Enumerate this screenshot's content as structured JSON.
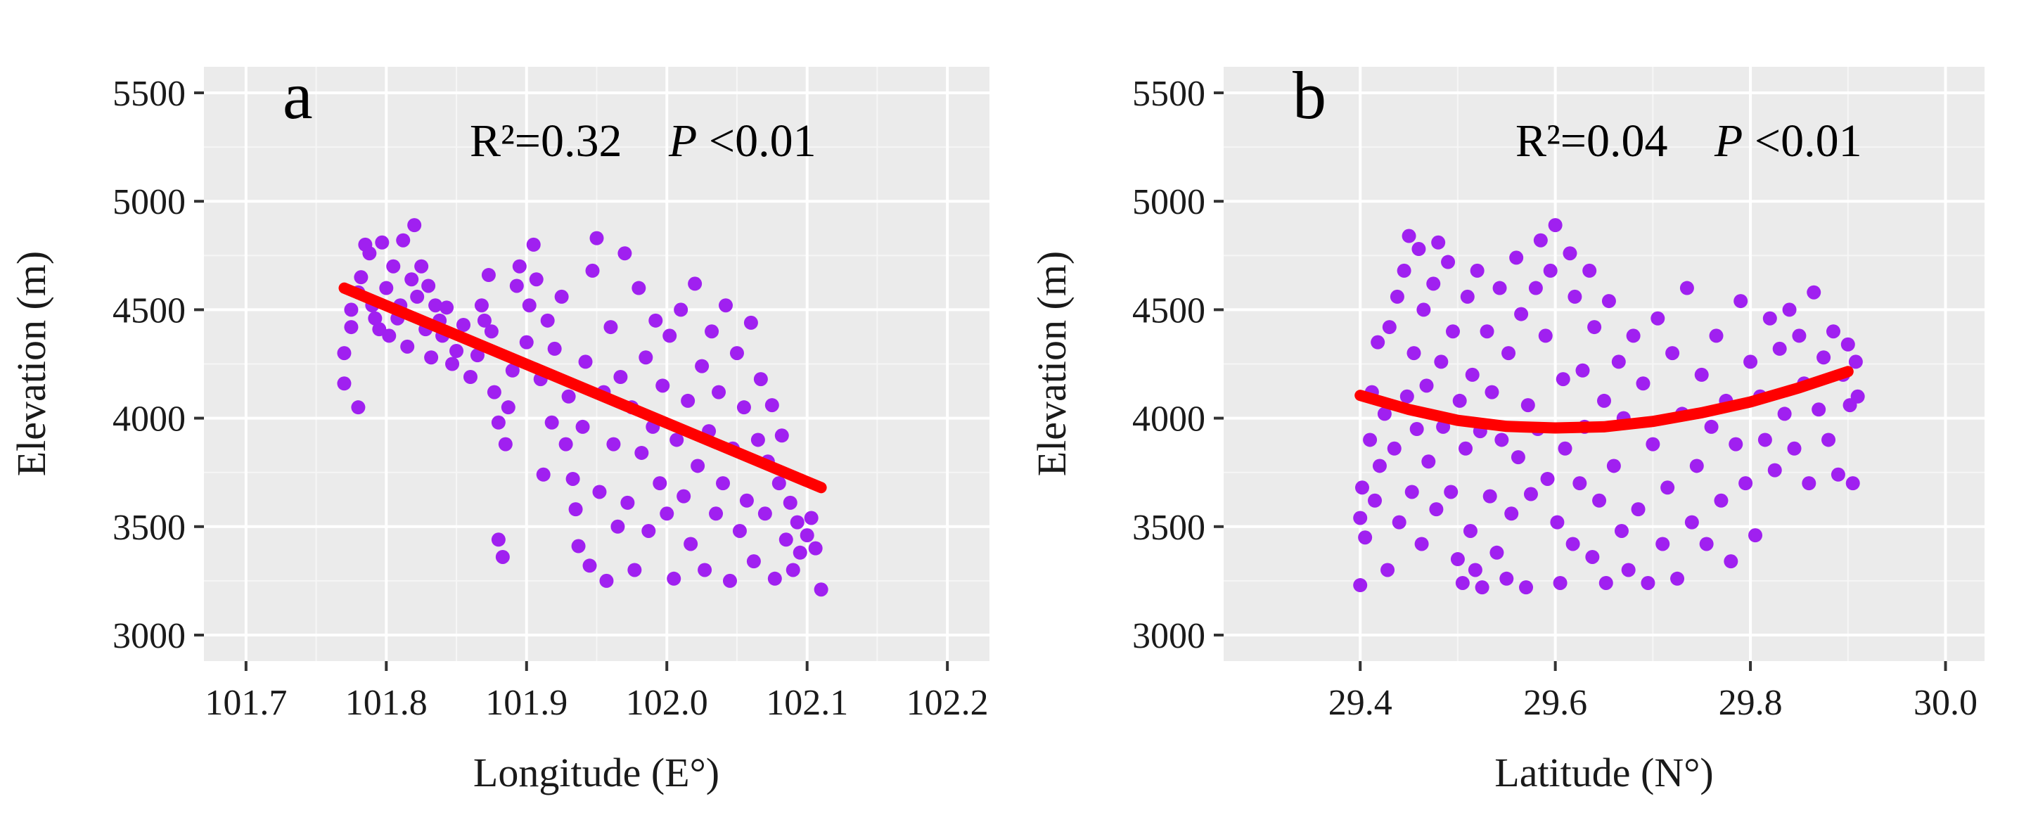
{
  "chart_data": [
    {
      "type": "scatter",
      "panel_label": "a",
      "xlabel": "Longitude (E°)",
      "ylabel": "Elevation (m)",
      "xlim": [
        101.67,
        102.23
      ],
      "ylim": [
        2880,
        5620
      ],
      "x_ticks": [
        "101.7",
        "101.8",
        "101.9",
        "102.0",
        "102.1",
        "102.2"
      ],
      "y_ticks": [
        "3000",
        "3500",
        "4000",
        "4500",
        "5000",
        "5500"
      ],
      "annotation": {
        "r2": "R²=0.32",
        "p_symbol": "P",
        "p_value": "<0.01"
      },
      "points_color": "#a020f0",
      "fit_color": "#ff0000",
      "fit": {
        "model": "linear",
        "x": [
          101.77,
          102.11
        ],
        "y": [
          4600,
          3680
        ]
      },
      "points": [
        [
          101.77,
          4160
        ],
        [
          101.77,
          4300
        ],
        [
          101.775,
          4420
        ],
        [
          101.775,
          4500
        ],
        [
          101.78,
          4050
        ],
        [
          101.78,
          4580
        ],
        [
          101.782,
          4650
        ],
        [
          101.785,
          4800
        ],
        [
          101.788,
          4760
        ],
        [
          101.79,
          4520
        ],
        [
          101.792,
          4460
        ],
        [
          101.795,
          4410
        ],
        [
          101.797,
          4810
        ],
        [
          101.8,
          4600
        ],
        [
          101.802,
          4380
        ],
        [
          101.805,
          4700
        ],
        [
          101.808,
          4460
        ],
        [
          101.81,
          4520
        ],
        [
          101.812,
          4820
        ],
        [
          101.815,
          4330
        ],
        [
          101.818,
          4640
        ],
        [
          101.82,
          4890
        ],
        [
          101.822,
          4560
        ],
        [
          101.825,
          4700
        ],
        [
          101.828,
          4410
        ],
        [
          101.83,
          4610
        ],
        [
          101.832,
          4280
        ],
        [
          101.835,
          4520
        ],
        [
          101.838,
          4450
        ],
        [
          101.84,
          4380
        ],
        [
          101.843,
          4510
        ],
        [
          101.847,
          4250
        ],
        [
          101.85,
          4310
        ],
        [
          101.855,
          4430
        ],
        [
          101.86,
          4190
        ],
        [
          101.865,
          4290
        ],
        [
          101.868,
          4520
        ],
        [
          101.87,
          4450
        ],
        [
          101.873,
          4660
        ],
        [
          101.875,
          4400
        ],
        [
          101.877,
          4120
        ],
        [
          101.88,
          3980
        ],
        [
          101.88,
          3440
        ],
        [
          101.883,
          3360
        ],
        [
          101.885,
          3880
        ],
        [
          101.887,
          4050
        ],
        [
          101.89,
          4220
        ],
        [
          101.893,
          4610
        ],
        [
          101.895,
          4700
        ],
        [
          101.9,
          4350
        ],
        [
          101.902,
          4520
        ],
        [
          101.905,
          4800
        ],
        [
          101.907,
          4640
        ],
        [
          101.91,
          4180
        ],
        [
          101.912,
          3740
        ],
        [
          101.915,
          4450
        ],
        [
          101.918,
          3980
        ],
        [
          101.92,
          4320
        ],
        [
          101.925,
          4560
        ],
        [
          101.928,
          3880
        ],
        [
          101.93,
          4100
        ],
        [
          101.933,
          3720
        ],
        [
          101.935,
          3580
        ],
        [
          101.937,
          3410
        ],
        [
          101.94,
          3960
        ],
        [
          101.942,
          4260
        ],
        [
          101.945,
          3320
        ],
        [
          101.947,
          4680
        ],
        [
          101.95,
          4830
        ],
        [
          101.952,
          3660
        ],
        [
          101.955,
          4120
        ],
        [
          101.957,
          3250
        ],
        [
          101.96,
          4420
        ],
        [
          101.962,
          3880
        ],
        [
          101.965,
          3500
        ],
        [
          101.967,
          4190
        ],
        [
          101.97,
          4760
        ],
        [
          101.972,
          3610
        ],
        [
          101.975,
          4050
        ],
        [
          101.977,
          3300
        ],
        [
          101.98,
          4600
        ],
        [
          101.982,
          3840
        ],
        [
          101.985,
          4280
        ],
        [
          101.987,
          3480
        ],
        [
          101.99,
          3960
        ],
        [
          101.992,
          4450
        ],
        [
          101.995,
          3700
        ],
        [
          101.997,
          4150
        ],
        [
          102.0,
          3560
        ],
        [
          102.002,
          4380
        ],
        [
          102.005,
          3260
        ],
        [
          102.007,
          3900
        ],
        [
          102.01,
          4500
        ],
        [
          102.012,
          3640
        ],
        [
          102.015,
          4080
        ],
        [
          102.017,
          3420
        ],
        [
          102.02,
          4620
        ],
        [
          102.022,
          3780
        ],
        [
          102.025,
          4240
        ],
        [
          102.027,
          3300
        ],
        [
          102.03,
          3940
        ],
        [
          102.032,
          4400
        ],
        [
          102.035,
          3560
        ],
        [
          102.037,
          4120
        ],
        [
          102.04,
          3700
        ],
        [
          102.042,
          4520
        ],
        [
          102.045,
          3250
        ],
        [
          102.047,
          3860
        ],
        [
          102.05,
          4300
        ],
        [
          102.052,
          3480
        ],
        [
          102.055,
          4050
        ],
        [
          102.057,
          3620
        ],
        [
          102.06,
          4440
        ],
        [
          102.062,
          3340
        ],
        [
          102.065,
          3900
        ],
        [
          102.067,
          4180
        ],
        [
          102.07,
          3560
        ],
        [
          102.072,
          3800
        ],
        [
          102.075,
          4060
        ],
        [
          102.077,
          3260
        ],
        [
          102.08,
          3700
        ],
        [
          102.082,
          3920
        ],
        [
          102.085,
          3440
        ],
        [
          102.088,
          3610
        ],
        [
          102.09,
          3300
        ],
        [
          102.093,
          3520
        ],
        [
          102.095,
          3380
        ],
        [
          102.1,
          3460
        ],
        [
          102.103,
          3540
        ],
        [
          102.106,
          3400
        ],
        [
          102.11,
          3210
        ]
      ]
    },
    {
      "type": "scatter",
      "panel_label": "b",
      "xlabel": "Latitude (N°)",
      "ylabel": "Elevation (m)",
      "xlim": [
        29.26,
        30.04
      ],
      "ylim": [
        2880,
        5620
      ],
      "x_ticks": [
        "29.4",
        "29.6",
        "29.8",
        "30.0"
      ],
      "y_ticks": [
        "3000",
        "3500",
        "4000",
        "4500",
        "5000",
        "5500"
      ],
      "annotation": {
        "r2": "R²=0.04",
        "p_symbol": "P",
        "p_value": "<0.01"
      },
      "points_color": "#a020f0",
      "fit_color": "#ff0000",
      "fit": {
        "model": "quadratic",
        "x": [
          29.4,
          29.45,
          29.5,
          29.55,
          29.6,
          29.65,
          29.7,
          29.75,
          29.8,
          29.85,
          29.9
        ],
        "y": [
          4105,
          4040,
          3990,
          3962,
          3955,
          3960,
          3985,
          4025,
          4075,
          4140,
          4215
        ]
      },
      "points": [
        [
          29.4,
          3230
        ],
        [
          29.4,
          3540
        ],
        [
          29.402,
          3680
        ],
        [
          29.405,
          3450
        ],
        [
          29.41,
          3900
        ],
        [
          29.412,
          4120
        ],
        [
          29.415,
          3620
        ],
        [
          29.418,
          4350
        ],
        [
          29.42,
          3780
        ],
        [
          29.425,
          4020
        ],
        [
          29.428,
          3300
        ],
        [
          29.43,
          4420
        ],
        [
          29.435,
          3860
        ],
        [
          29.438,
          4560
        ],
        [
          29.44,
          3520
        ],
        [
          29.445,
          4680
        ],
        [
          29.448,
          4100
        ],
        [
          29.45,
          4840
        ],
        [
          29.453,
          3660
        ],
        [
          29.455,
          4300
        ],
        [
          29.458,
          3950
        ],
        [
          29.46,
          4780
        ],
        [
          29.463,
          3420
        ],
        [
          29.465,
          4500
        ],
        [
          29.468,
          4150
        ],
        [
          29.47,
          3800
        ],
        [
          29.475,
          4620
        ],
        [
          29.478,
          3580
        ],
        [
          29.48,
          4810
        ],
        [
          29.483,
          4260
        ],
        [
          29.485,
          3960
        ],
        [
          29.49,
          4720
        ],
        [
          29.493,
          3660
        ],
        [
          29.495,
          4400
        ],
        [
          29.5,
          3350
        ],
        [
          29.502,
          4080
        ],
        [
          29.505,
          3240
        ],
        [
          29.508,
          3860
        ],
        [
          29.51,
          4560
        ],
        [
          29.513,
          3480
        ],
        [
          29.515,
          4200
        ],
        [
          29.518,
          3300
        ],
        [
          29.52,
          4680
        ],
        [
          29.523,
          3940
        ],
        [
          29.525,
          3220
        ],
        [
          29.53,
          4400
        ],
        [
          29.533,
          3640
        ],
        [
          29.535,
          4120
        ],
        [
          29.54,
          3380
        ],
        [
          29.543,
          4600
        ],
        [
          29.545,
          3900
        ],
        [
          29.55,
          3260
        ],
        [
          29.552,
          4300
        ],
        [
          29.555,
          3560
        ],
        [
          29.56,
          4740
        ],
        [
          29.562,
          3820
        ],
        [
          29.565,
          4480
        ],
        [
          29.57,
          3220
        ],
        [
          29.572,
          4060
        ],
        [
          29.575,
          3650
        ],
        [
          29.58,
          4600
        ],
        [
          29.582,
          3950
        ],
        [
          29.585,
          4820
        ],
        [
          29.59,
          4380
        ],
        [
          29.592,
          3720
        ],
        [
          29.595,
          4680
        ],
        [
          29.6,
          4890
        ],
        [
          29.602,
          3520
        ],
        [
          29.605,
          3240
        ],
        [
          29.608,
          4180
        ],
        [
          29.61,
          3860
        ],
        [
          29.615,
          4760
        ],
        [
          29.618,
          3420
        ],
        [
          29.62,
          4560
        ],
        [
          29.625,
          3700
        ],
        [
          29.628,
          4220
        ],
        [
          29.63,
          3960
        ],
        [
          29.635,
          4680
        ],
        [
          29.638,
          3360
        ],
        [
          29.64,
          4420
        ],
        [
          29.645,
          3620
        ],
        [
          29.65,
          4080
        ],
        [
          29.652,
          3240
        ],
        [
          29.655,
          4540
        ],
        [
          29.66,
          3780
        ],
        [
          29.665,
          4260
        ],
        [
          29.668,
          3480
        ],
        [
          29.67,
          4000
        ],
        [
          29.675,
          3300
        ],
        [
          29.68,
          4380
        ],
        [
          29.685,
          3580
        ],
        [
          29.69,
          4160
        ],
        [
          29.695,
          3240
        ],
        [
          29.7,
          3880
        ],
        [
          29.705,
          4460
        ],
        [
          29.71,
          3420
        ],
        [
          29.715,
          3680
        ],
        [
          29.72,
          4300
        ],
        [
          29.725,
          3260
        ],
        [
          29.73,
          4020
        ],
        [
          29.735,
          4600
        ],
        [
          29.74,
          3520
        ],
        [
          29.745,
          3780
        ],
        [
          29.75,
          4200
        ],
        [
          29.755,
          3420
        ],
        [
          29.76,
          3960
        ],
        [
          29.765,
          4380
        ],
        [
          29.77,
          3620
        ],
        [
          29.775,
          4080
        ],
        [
          29.78,
          3340
        ],
        [
          29.785,
          3880
        ],
        [
          29.79,
          4540
        ],
        [
          29.795,
          3700
        ],
        [
          29.8,
          4260
        ],
        [
          29.805,
          3460
        ],
        [
          29.81,
          4100
        ],
        [
          29.815,
          3900
        ],
        [
          29.82,
          4460
        ],
        [
          29.825,
          3760
        ],
        [
          29.83,
          4320
        ],
        [
          29.835,
          4020
        ],
        [
          29.84,
          4500
        ],
        [
          29.845,
          3860
        ],
        [
          29.85,
          4380
        ],
        [
          29.855,
          4160
        ],
        [
          29.86,
          3700
        ],
        [
          29.865,
          4580
        ],
        [
          29.87,
          4040
        ],
        [
          29.875,
          4280
        ],
        [
          29.88,
          3900
        ],
        [
          29.885,
          4400
        ],
        [
          29.89,
          3740
        ],
        [
          29.895,
          4200
        ],
        [
          29.9,
          4340
        ],
        [
          29.902,
          4060
        ],
        [
          29.905,
          3700
        ],
        [
          29.908,
          4260
        ],
        [
          29.91,
          4100
        ]
      ]
    }
  ]
}
